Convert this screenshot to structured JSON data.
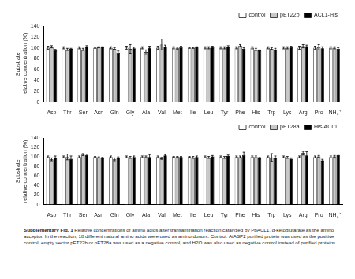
{
  "chart_data": [
    {
      "type": "bar",
      "y_label": [
        "Substrate",
        "relative concentration (%)"
      ],
      "categories": [
        "Asp",
        "Thr",
        "Ser",
        "Asn",
        "Gln",
        "Gly",
        "Ala",
        "Val",
        "Met",
        "Ile",
        "Leu",
        "Tyr",
        "Phe",
        "His",
        "Trp",
        "Lys",
        "Arg",
        "Pro",
        "NH₄⁺"
      ],
      "series": [
        {
          "name": "control",
          "color": "#ffffff",
          "values": [
            100,
            100,
            100,
            100,
            100,
            100,
            100,
            100,
            100,
            100,
            100,
            100,
            100,
            100,
            100,
            100,
            100,
            100,
            100
          ],
          "errors": [
            3,
            2,
            2,
            1,
            2,
            3,
            2,
            3,
            2,
            1,
            2,
            2,
            2,
            2,
            2,
            2,
            3,
            3,
            2
          ]
        },
        {
          "name": "pET22b",
          "color": "#c8c8c8",
          "values": [
            102,
            97,
            97,
            101,
            98,
            98,
            92,
            106,
            99,
            100,
            100,
            100,
            104,
            97,
            98,
            100,
            103,
            101,
            100
          ],
          "errors": [
            2,
            2,
            2,
            1,
            2,
            8,
            4,
            10,
            2,
            1,
            2,
            2,
            2,
            2,
            2,
            2,
            3,
            5,
            2
          ]
        },
        {
          "name": "ACL1-His",
          "color": "#000000",
          "values": [
            95,
            98,
            102,
            101,
            91,
            99,
            100,
            102,
            101,
            101,
            101,
            102,
            98,
            95,
            97,
            101,
            103,
            99,
            98
          ],
          "errors": [
            2,
            1,
            2,
            1,
            3,
            2,
            3,
            3,
            2,
            1,
            2,
            2,
            2,
            1,
            2,
            2,
            2,
            3,
            2
          ]
        }
      ],
      "ylim": [
        0,
        140
      ],
      "yticks": [
        0,
        20,
        40,
        60,
        80,
        100,
        120,
        140
      ],
      "grid": false,
      "legend": "upper right"
    },
    {
      "type": "bar",
      "y_label": [
        "Substrate",
        "relative concentration (%)"
      ],
      "categories": [
        "Asp",
        "Thr",
        "Ser",
        "Asn",
        "Gln",
        "Gly",
        "Ala",
        "Val",
        "Met",
        "Ile",
        "Leu",
        "Tyr",
        "Phe",
        "His",
        "Trp",
        "Lys",
        "Arg",
        "Pro",
        "NH₄⁺"
      ],
      "series": [
        {
          "name": "control",
          "color": "#ffffff",
          "values": [
            100,
            100,
            100,
            100,
            100,
            100,
            100,
            100,
            100,
            100,
            100,
            100,
            100,
            100,
            100,
            100,
            100,
            100,
            100
          ],
          "errors": [
            2,
            2,
            2,
            1,
            2,
            2,
            2,
            2,
            1,
            1,
            2,
            2,
            2,
            2,
            2,
            2,
            2,
            2,
            2
          ]
        },
        {
          "name": "pET28a",
          "color": "#c8c8c8",
          "values": [
            95,
            100,
            105,
            99,
            95,
            99,
            100,
            97,
            100,
            99,
            99,
            99,
            100,
            100,
            99,
            99,
            108,
            101,
            101
          ],
          "errors": [
            3,
            6,
            2,
            1,
            3,
            2,
            2,
            2,
            1,
            2,
            2,
            2,
            2,
            2,
            8,
            2,
            4,
            2,
            2
          ]
        },
        {
          "name": "His-ACL1",
          "color": "#000000",
          "values": [
            99,
            96,
            104,
            98,
            98,
            100,
            100,
            103,
            100,
            100,
            101,
            102,
            104,
            97,
            99,
            96,
            103,
            93,
            104
          ],
          "errors": [
            3,
            6,
            2,
            1,
            2,
            2,
            5,
            2,
            1,
            2,
            2,
            2,
            6,
            2,
            3,
            2,
            8,
            2,
            2
          ]
        }
      ],
      "ylim": [
        0,
        140
      ],
      "yticks": [
        0,
        20,
        40,
        60,
        80,
        100,
        120,
        140
      ],
      "grid": false,
      "legend": "upper right"
    }
  ],
  "caption": {
    "label": "Supplementary Fig. 1",
    "text": "Relative concentrations of amino acids after transamination reaction catalyzed by PpACL1, α-ketoglutarate as the amino acceptor. In the reaction, 18 different natural amino acids were used as amino donors. Control: AtASP2 purified protein was used as the positive control, empty vector pET22b or pET28a was used as a negative control, and H2O was also used as negative control instead of purified proteins."
  }
}
